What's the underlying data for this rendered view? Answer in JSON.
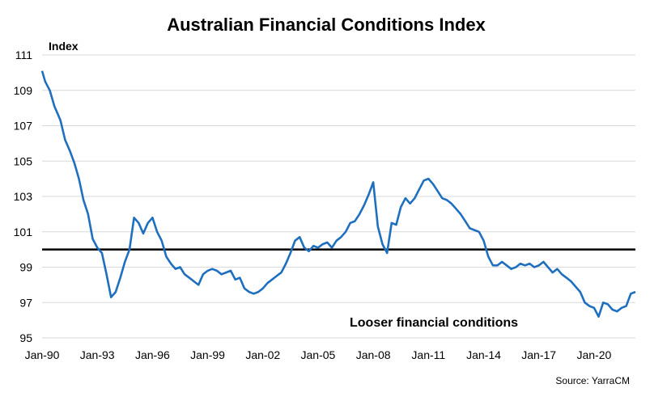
{
  "chart_data": {
    "type": "line",
    "title": "Australian Financial Conditions Index",
    "ylabel": "Index",
    "xlabel": "",
    "ylim": [
      95,
      111
    ],
    "yticks": [
      "95",
      "97",
      "99",
      "101",
      "103",
      "105",
      "107",
      "109",
      "111"
    ],
    "xticks": [
      "Jan-90",
      "Jan-93",
      "Jan-96",
      "Jan-99",
      "Jan-02",
      "Jan-05",
      "Jan-08",
      "Jan-11",
      "Jan-14",
      "Jan-17",
      "Jan-20"
    ],
    "xlim": [
      "1990-01",
      "2022-04"
    ],
    "grid": true,
    "reference_line": 100,
    "annotation": "Looser financial conditions",
    "source": "Source: YarraCM",
    "line_color": "#1f6fbf",
    "series": [
      {
        "name": "",
        "x": [
          "1990-01",
          "1990-03",
          "1990-06",
          "1990-09",
          "1991-01",
          "1991-04",
          "1991-07",
          "1991-10",
          "1992-01",
          "1992-04",
          "1992-07",
          "1992-10",
          "1993-01",
          "1993-04",
          "1993-07",
          "1993-10",
          "1994-01",
          "1994-04",
          "1994-07",
          "1994-10",
          "1995-01",
          "1995-04",
          "1995-07",
          "1995-10",
          "1996-01",
          "1996-04",
          "1996-07",
          "1996-10",
          "1997-01",
          "1997-04",
          "1997-07",
          "1997-10",
          "1998-01",
          "1998-04",
          "1998-07",
          "1998-10",
          "1999-01",
          "1999-04",
          "1999-07",
          "1999-10",
          "2000-01",
          "2000-04",
          "2000-07",
          "2000-10",
          "2001-01",
          "2001-04",
          "2001-07",
          "2001-10",
          "2002-01",
          "2002-04",
          "2002-07",
          "2002-10",
          "2003-01",
          "2003-04",
          "2003-07",
          "2003-10",
          "2004-01",
          "2004-04",
          "2004-07",
          "2004-10",
          "2005-01",
          "2005-04",
          "2005-07",
          "2005-10",
          "2006-01",
          "2006-04",
          "2006-07",
          "2006-10",
          "2007-01",
          "2007-04",
          "2007-07",
          "2007-10",
          "2008-01",
          "2008-04",
          "2008-07",
          "2008-10",
          "2009-01",
          "2009-04",
          "2009-07",
          "2009-10",
          "2010-01",
          "2010-04",
          "2010-07",
          "2010-10",
          "2011-01",
          "2011-04",
          "2011-07",
          "2011-10",
          "2012-01",
          "2012-04",
          "2012-07",
          "2012-10",
          "2013-01",
          "2013-04",
          "2013-07",
          "2013-10",
          "2014-01",
          "2014-04",
          "2014-07",
          "2014-10",
          "2015-01",
          "2015-04",
          "2015-07",
          "2015-10",
          "2016-01",
          "2016-04",
          "2016-07",
          "2016-10",
          "2017-01",
          "2017-04",
          "2017-07",
          "2017-10",
          "2018-01",
          "2018-04",
          "2018-07",
          "2018-10",
          "2019-01",
          "2019-04",
          "2019-07",
          "2019-10",
          "2020-01",
          "2020-04",
          "2020-07",
          "2020-10",
          "2021-01",
          "2021-04",
          "2021-07",
          "2021-10",
          "2022-01",
          "2022-04"
        ],
        "values": [
          110.1,
          109.5,
          109.0,
          108.1,
          107.3,
          106.2,
          105.6,
          104.9,
          104.0,
          102.8,
          102.0,
          100.6,
          100.1,
          99.8,
          98.6,
          97.3,
          97.6,
          98.4,
          99.3,
          100.0,
          101.8,
          101.5,
          100.9,
          101.5,
          101.8,
          101.0,
          100.5,
          99.6,
          99.2,
          98.9,
          99.0,
          98.6,
          98.4,
          98.2,
          98.0,
          98.6,
          98.8,
          98.9,
          98.8,
          98.6,
          98.7,
          98.8,
          98.3,
          98.4,
          97.8,
          97.6,
          97.5,
          97.6,
          97.8,
          98.1,
          98.3,
          98.5,
          98.7,
          99.2,
          99.8,
          100.5,
          100.7,
          100.1,
          99.9,
          100.2,
          100.1,
          100.3,
          100.4,
          100.1,
          100.5,
          100.7,
          101.0,
          101.5,
          101.6,
          102.0,
          102.5,
          103.1,
          103.8,
          101.3,
          100.3,
          99.8,
          101.5,
          101.4,
          102.4,
          102.9,
          102.6,
          102.9,
          103.4,
          103.9,
          104.0,
          103.7,
          103.3,
          102.9,
          102.8,
          102.6,
          102.3,
          102.0,
          101.6,
          101.2,
          101.1,
          101.0,
          100.5,
          99.6,
          99.1,
          99.1,
          99.3,
          99.1,
          98.9,
          99.0,
          99.2,
          99.1,
          99.2,
          99.0,
          99.1,
          99.3,
          99.0,
          98.7,
          98.9,
          98.6,
          98.4,
          98.2,
          97.9,
          97.6,
          97.0,
          96.8,
          96.7,
          96.2,
          97.0,
          96.9,
          96.6,
          96.5,
          96.7,
          96.8,
          97.5,
          97.6
        ]
      }
    ]
  }
}
